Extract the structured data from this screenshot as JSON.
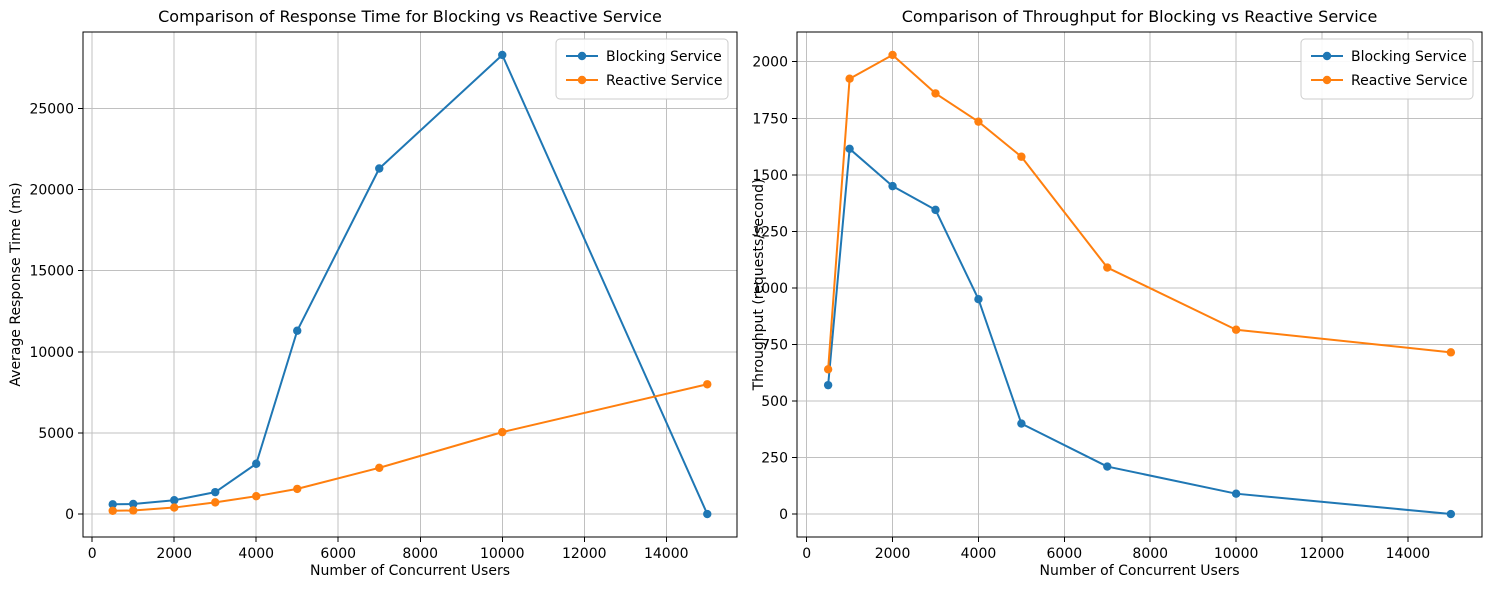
{
  "figure": {
    "background": "#ffffff",
    "grid_color": "#c0c0c0",
    "spine_color": "#000000",
    "legend_border_color": "#cccccc"
  },
  "chart_data": [
    {
      "type": "line",
      "title": "Comparison of Response Time for Blocking vs Reactive Service",
      "xlabel": "Number of Concurrent Users",
      "ylabel": "Average Response Time (ms)",
      "x": [
        500,
        1000,
        2000,
        3000,
        4000,
        5000,
        7000,
        10000,
        15000
      ],
      "series": [
        {
          "name": "Blocking Service",
          "color": "#1f77b4",
          "values": [
            600,
            620,
            850,
            1350,
            3100,
            11300,
            21300,
            28300,
            0
          ]
        },
        {
          "name": "Reactive Service",
          "color": "#ff7f0e",
          "values": [
            200,
            220,
            400,
            720,
            1100,
            1550,
            2850,
            5050,
            8000
          ]
        }
      ],
      "xticks": [
        0,
        2000,
        4000,
        6000,
        8000,
        10000,
        12000,
        14000
      ],
      "yticks": [
        0,
        5000,
        10000,
        15000,
        20000,
        25000
      ],
      "xlim": [
        -225,
        15725
      ],
      "ylim": [
        -1415,
        29715
      ],
      "grid": true,
      "legend": {
        "position": "upper right",
        "labels": [
          "Blocking Service",
          "Reactive Service"
        ]
      }
    },
    {
      "type": "line",
      "title": "Comparison of Throughput for Blocking vs Reactive Service",
      "xlabel": "Number of Concurrent Users",
      "ylabel": "Throughput (requests/second)",
      "x": [
        500,
        1000,
        2000,
        3000,
        4000,
        5000,
        7000,
        10000,
        15000
      ],
      "series": [
        {
          "name": "Blocking Service",
          "color": "#1f77b4",
          "values": [
            570,
            1615,
            1450,
            1345,
            950,
            400,
            210,
            90,
            0
          ]
        },
        {
          "name": "Reactive Service",
          "color": "#ff7f0e",
          "values": [
            640,
            1925,
            2030,
            1860,
            1735,
            1580,
            1090,
            815,
            715
          ]
        }
      ],
      "xticks": [
        0,
        2000,
        4000,
        6000,
        8000,
        10000,
        12000,
        14000
      ],
      "yticks": [
        0,
        250,
        500,
        750,
        1000,
        1250,
        1500,
        1750,
        2000
      ],
      "xlim": [
        -225,
        15725
      ],
      "ylim": [
        -101.5,
        2131.5
      ],
      "grid": true,
      "legend": {
        "position": "upper right",
        "labels": [
          "Blocking Service",
          "Reactive Service"
        ]
      }
    }
  ]
}
